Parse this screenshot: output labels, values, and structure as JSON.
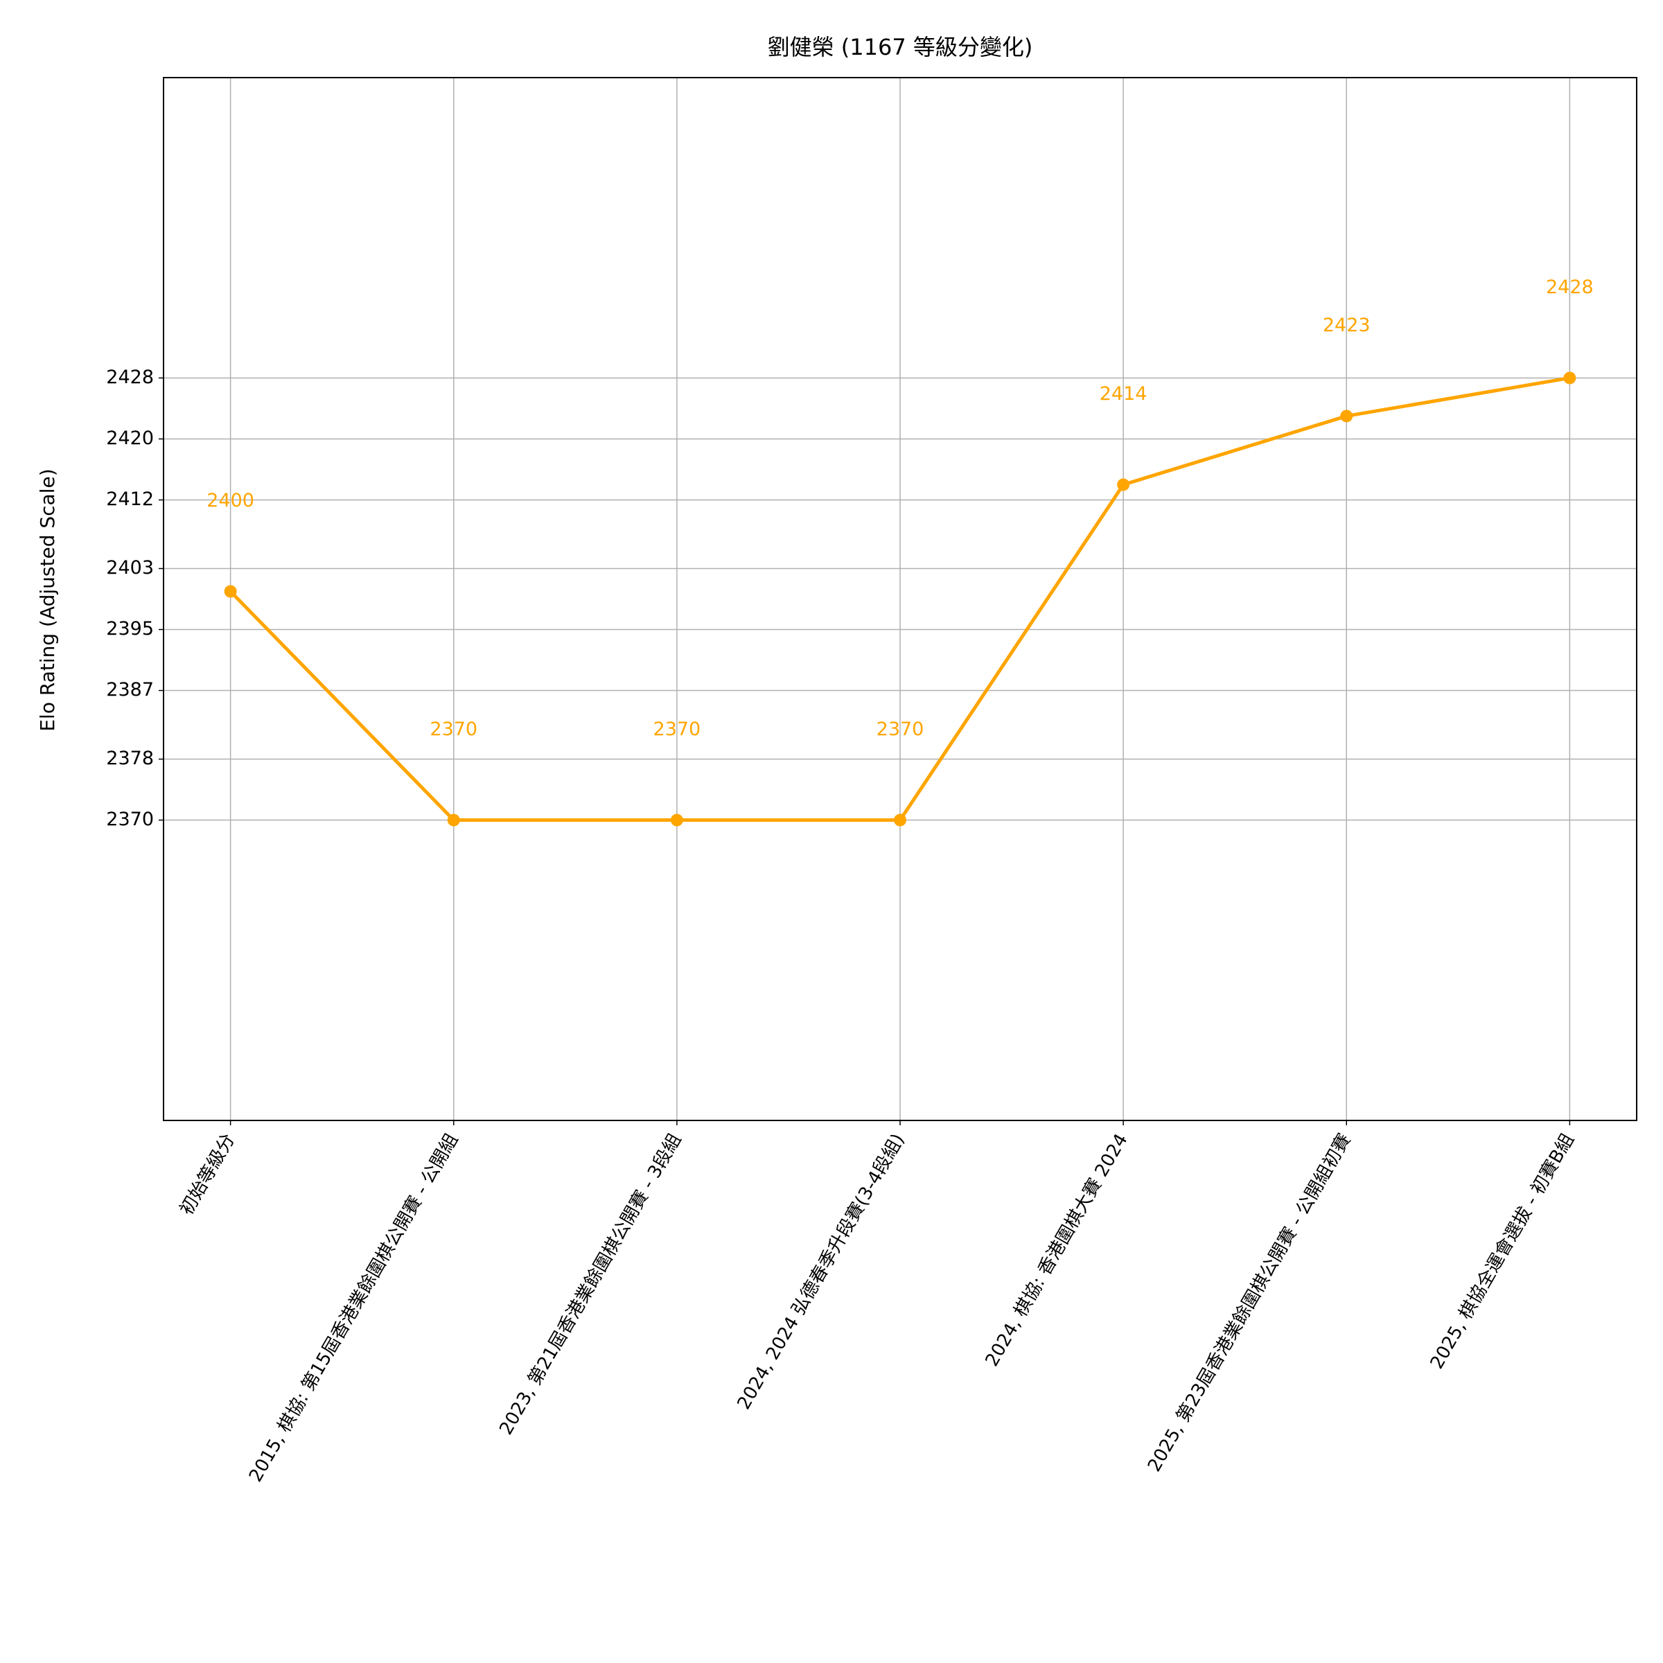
{
  "chart_data": {
    "type": "line",
    "title": "劉健榮 (1167 等級分變化)",
    "y_label": "Elo Rating (Adjusted Scale)",
    "categories": [
      "初始等級分",
      "2015, 棋協: 第15屆香港業餘圍棋公開賽 - 公開組",
      "2023, 第21屆香港業餘圍棋公開賽 - 3段組",
      "2024, 2024 弘德春季升段賽(3-4段組)",
      "2024, 棋協: 香港圍棋大賽 2024",
      "2025, 第23屆香港業餘圍棋公開賽 - 公開組初賽",
      "2025, 棋協全運會選拔 - 初賽B組"
    ],
    "series": [
      {
        "name": "Elo",
        "color": "#ffa500",
        "values": [
          2400,
          2370,
          2370,
          2370,
          2414,
          2423,
          2428
        ]
      }
    ],
    "ylim": [
      2330.6,
      2467.4
    ],
    "yticks": [
      2370,
      2378,
      2387,
      2395,
      2403,
      2412,
      2420,
      2428
    ],
    "grid": true
  }
}
